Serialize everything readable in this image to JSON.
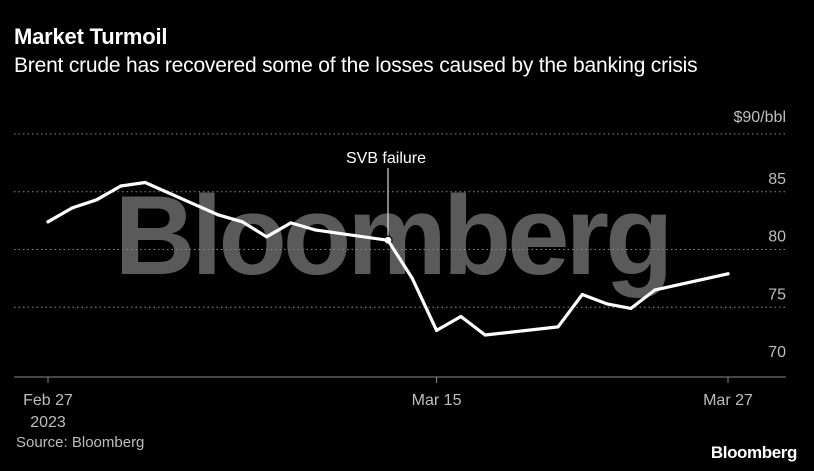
{
  "header": {
    "title": "Market Turmoil",
    "subtitle": "Brent crude has recovered some of the losses caused by the banking crisis"
  },
  "footer": {
    "source": "Source: Bloomberg",
    "brand": "Bloomberg"
  },
  "watermark": "Bloomberg",
  "colors": {
    "background": "#000000",
    "line": "#ffffff",
    "grid": "#8a8a8a",
    "text": "#ffffff",
    "muted": "#bdbdbd",
    "watermark": "#5a5a5a"
  },
  "chart_data": {
    "type": "line",
    "title": "Market Turmoil",
    "subtitle": "Brent crude has recovered some of the losses caused by the banking crisis",
    "unit_label": "$90/bbl",
    "ylim": [
      70,
      90
    ],
    "y_ticks": [
      70,
      75,
      80,
      85,
      90
    ],
    "y_tick_labels": [
      "70",
      "75",
      "80",
      "85",
      "$90/bbl"
    ],
    "grid": true,
    "x_ticks": [
      {
        "date": "2023-02-27",
        "label": "Feb 27",
        "sublabel": "2023"
      },
      {
        "date": "2023-03-15",
        "label": "Mar 15",
        "sublabel": ""
      },
      {
        "date": "2023-03-27",
        "label": "Mar 27",
        "sublabel": ""
      }
    ],
    "series": [
      {
        "x": [
          "2023-02-27",
          "2023-02-28",
          "2023-03-01",
          "2023-03-02",
          "2023-03-03",
          "2023-03-06",
          "2023-03-07",
          "2023-03-08",
          "2023-03-09",
          "2023-03-10",
          "2023-03-13",
          "2023-03-14",
          "2023-03-15",
          "2023-03-16",
          "2023-03-17",
          "2023-03-20",
          "2023-03-21",
          "2023-03-22",
          "2023-03-23",
          "2023-03-24",
          "2023-03-27"
        ],
        "values": [
          82.4,
          83.6,
          84.3,
          85.5,
          85.8,
          83.0,
          82.4,
          81.1,
          82.3,
          81.7,
          80.8,
          77.5,
          73.0,
          74.2,
          72.6,
          73.3,
          76.1,
          75.3,
          74.9,
          76.5,
          77.9
        ]
      }
    ],
    "annotations": [
      {
        "label": "SVB failure",
        "x": "2023-03-13",
        "y": 80.8
      }
    ]
  }
}
